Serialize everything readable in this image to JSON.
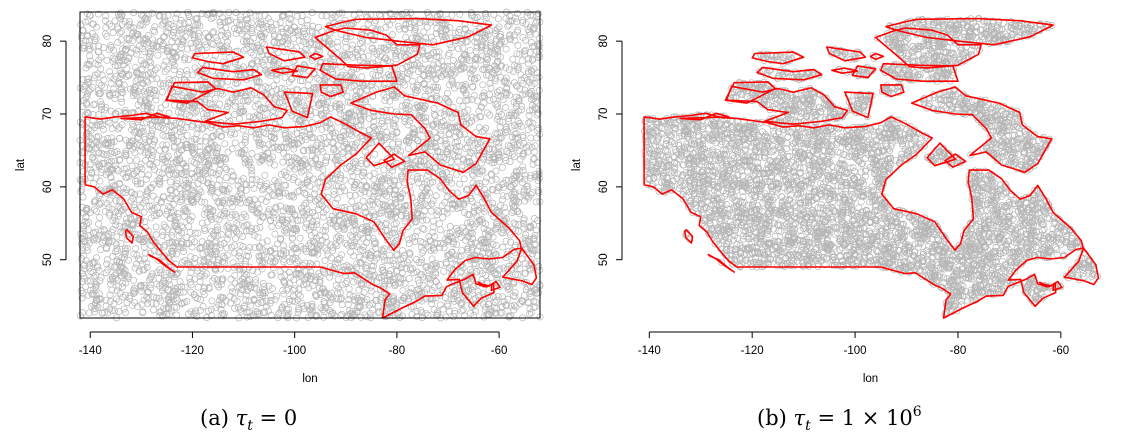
{
  "chart_data": [
    {
      "type": "scatter",
      "title": "",
      "xlabel": "lon",
      "ylabel": "lat",
      "xlim": [
        -142,
        -52
      ],
      "ylim": [
        42,
        84
      ],
      "xticks": [
        -140,
        -120,
        -100,
        -80,
        -60
      ],
      "yticks": [
        50,
        60,
        70,
        80
      ],
      "points": "approx. 6000 random points spread uniformly over the lon/lat rectangle",
      "point_color": "#b5b5b5",
      "outline_color": "#ff0000",
      "caption": {
        "label": "(a)",
        "symbol": "τ",
        "subscript": "t",
        "value": "= 0"
      }
    },
    {
      "type": "scatter",
      "title": "",
      "xlabel": "lon",
      "ylabel": "lat",
      "xlim": [
        -142,
        -52
      ],
      "ylim": [
        42,
        84
      ],
      "xticks": [
        -140,
        -120,
        -100,
        -80,
        -60
      ],
      "yticks": [
        50,
        60,
        70,
        80
      ],
      "points": "approx. 6000 points located only inside the Canada outline",
      "point_color": "#b5b5b5",
      "outline_color": "#ff0000",
      "caption": {
        "label": "(b)",
        "symbol": "τ",
        "subscript": "t",
        "value": "= 1 × 10",
        "exponent": "6"
      }
    }
  ],
  "outline": {
    "mainland": [
      [
        -141,
        69.6
      ],
      [
        -138,
        69.3
      ],
      [
        -135,
        69.6
      ],
      [
        -132,
        69.8
      ],
      [
        -129,
        70.1
      ],
      [
        -126,
        69.5
      ],
      [
        -123,
        69.4
      ],
      [
        -120,
        69.1
      ],
      [
        -117,
        68.8
      ],
      [
        -114,
        68.2
      ],
      [
        -111,
        68.4
      ],
      [
        -108,
        68.1
      ],
      [
        -105,
        68.5
      ],
      [
        -102,
        68.1
      ],
      [
        -98,
        68.3
      ],
      [
        -95,
        68.8
      ],
      [
        -93,
        69.6
      ],
      [
        -90,
        68.6
      ],
      [
        -87,
        67.4
      ],
      [
        -85,
        66.7
      ],
      [
        -88,
        64.5
      ],
      [
        -91,
        63.0
      ],
      [
        -94,
        61.0
      ],
      [
        -94.8,
        59.0
      ],
      [
        -92.5,
        57.0
      ],
      [
        -88,
        56.3
      ],
      [
        -84.5,
        55.2
      ],
      [
        -82.3,
        52.9
      ],
      [
        -80.6,
        51.3
      ],
      [
        -79.5,
        52.2
      ],
      [
        -78.8,
        54.0
      ],
      [
        -77,
        55.6
      ],
      [
        -77.3,
        58.5
      ],
      [
        -78,
        60.7
      ],
      [
        -77.8,
        62.3
      ],
      [
        -74,
        62.3
      ],
      [
        -71.5,
        61.1
      ],
      [
        -69.8,
        59.5
      ],
      [
        -67.9,
        58.3
      ],
      [
        -66,
        58.8
      ],
      [
        -64.5,
        60.2
      ],
      [
        -63,
        58.5
      ],
      [
        -61.5,
        56.5
      ],
      [
        -59.6,
        55.3
      ],
      [
        -58,
        54.3
      ],
      [
        -56,
        52.6
      ],
      [
        -55.7,
        51.6
      ],
      [
        -57.1,
        51.4
      ],
      [
        -59.3,
        50.3
      ],
      [
        -62,
        50.1
      ],
      [
        -64.6,
        50.3
      ],
      [
        -66.6,
        49.9
      ],
      [
        -68.7,
        48.6
      ],
      [
        -70.2,
        47.2
      ],
      [
        -67.8,
        47.3
      ],
      [
        -67.2,
        45.5
      ],
      [
        -65,
        43.6
      ],
      [
        -63.5,
        44.7
      ],
      [
        -61,
        45.5
      ],
      [
        -61.1,
        46.7
      ],
      [
        -62.5,
        46.3
      ],
      [
        -64.5,
        46.7
      ],
      [
        -65.1,
        48.0
      ],
      [
        -66.8,
        47.3
      ],
      [
        -69,
        46.7
      ],
      [
        -70.3,
        46.3
      ],
      [
        -71.2,
        45.1
      ],
      [
        -74.5,
        45.0
      ],
      [
        -76.5,
        44.2
      ],
      [
        -79.2,
        43.3
      ],
      [
        -82.8,
        42.0
      ],
      [
        -82.3,
        44.5
      ],
      [
        -81.4,
        45.3
      ],
      [
        -83.4,
        46.2
      ],
      [
        -84.5,
        46.5
      ],
      [
        -88.3,
        48.2
      ],
      [
        -90.3,
        48.1
      ],
      [
        -95,
        49.0
      ],
      [
        -100,
        49.0
      ],
      [
        -105,
        49.0
      ],
      [
        -110,
        49.0
      ],
      [
        -115,
        49.0
      ],
      [
        -120,
        49.0
      ],
      [
        -123,
        49.0
      ],
      [
        -124.5,
        49.8
      ],
      [
        -126,
        51.0
      ],
      [
        -127.7,
        52.5
      ],
      [
        -128.8,
        53.8
      ],
      [
        -130.3,
        54.7
      ],
      [
        -130,
        55.9
      ],
      [
        -131.9,
        56.5
      ],
      [
        -133.5,
        58.4
      ],
      [
        -135.7,
        59.6
      ],
      [
        -137.5,
        59.0
      ],
      [
        -139.2,
        60.0
      ],
      [
        -141,
        60.3
      ]
    ],
    "islands": [
      [
        [
          -128.5,
          50.7
        ],
        [
          -127,
          50.1
        ],
        [
          -125.6,
          49.3
        ],
        [
          -123.5,
          48.3
        ],
        [
          -124.7,
          48.9
        ],
        [
          -126.5,
          50.0
        ],
        [
          -128.2,
          50.5
        ]
      ],
      [
        [
          -132.8,
          54.1
        ],
        [
          -131.6,
          53.2
        ],
        [
          -131.8,
          52.3
        ],
        [
          -132.9,
          53.0
        ],
        [
          -133.1,
          53.9
        ]
      ],
      [
        [
          -59.3,
          47.6
        ],
        [
          -56.5,
          49.8
        ],
        [
          -55.6,
          51.6
        ],
        [
          -53.2,
          49.3
        ],
        [
          -52.7,
          47.5
        ],
        [
          -53.6,
          46.6
        ],
        [
          -55.5,
          47.1
        ],
        [
          -58.5,
          47.5
        ]
      ],
      [
        [
          -64.1,
          46.9
        ],
        [
          -63,
          46.3
        ],
        [
          -61.9,
          46.4
        ],
        [
          -63.2,
          46.6
        ]
      ],
      [
        [
          -61.5,
          45.8
        ],
        [
          -59.8,
          46.2
        ],
        [
          -60.6,
          47.0
        ],
        [
          -61.4,
          46.7
        ]
      ],
      [
        [
          -83.5,
          66.0
        ],
        [
          -80.5,
          63.8
        ],
        [
          -84.5,
          62.9
        ],
        [
          -86,
          64.0
        ]
      ],
      [
        [
          -78.5,
          72.5
        ],
        [
          -72,
          71.5
        ],
        [
          -68,
          70.2
        ],
        [
          -67.5,
          68.5
        ],
        [
          -64.5,
          66.9
        ],
        [
          -61.8,
          66.6
        ],
        [
          -64.5,
          63.2
        ],
        [
          -67,
          62.0
        ],
        [
          -71.5,
          63.0
        ],
        [
          -74.5,
          64.8
        ],
        [
          -77.7,
          64.3
        ],
        [
          -73.5,
          66.7
        ],
        [
          -74.5,
          68.0
        ],
        [
          -77.2,
          69.9
        ],
        [
          -80.5,
          70.0
        ],
        [
          -85,
          70.5
        ],
        [
          -89,
          71.5
        ],
        [
          -84,
          73.0
        ],
        [
          -80.5,
          73.7
        ]
      ],
      [
        [
          -125,
          71.9
        ],
        [
          -119,
          71.7
        ],
        [
          -117,
          70.6
        ],
        [
          -113,
          70.2
        ],
        [
          -117.5,
          69.0
        ],
        [
          -112,
          68.6
        ],
        [
          -106.5,
          69.0
        ],
        [
          -102.5,
          69.5
        ],
        [
          -101.5,
          70.5
        ],
        [
          -104,
          71.0
        ],
        [
          -106,
          72.6
        ],
        [
          -108.5,
          73.6
        ],
        [
          -112,
          73.0
        ],
        [
          -115,
          73.5
        ],
        [
          -118,
          73.0
        ],
        [
          -124,
          73.8
        ]
      ],
      [
        [
          -123.5,
          74.3
        ],
        [
          -117,
          74.4
        ],
        [
          -115.5,
          73.5
        ],
        [
          -121,
          71.5
        ],
        [
          -125.2,
          71.9
        ]
      ],
      [
        [
          -102,
          73.0
        ],
        [
          -96.5,
          72.8
        ],
        [
          -97.5,
          69.5
        ],
        [
          -100.5,
          70.4
        ],
        [
          -101.5,
          72.2
        ]
      ],
      [
        [
          -95,
          74.0
        ],
        [
          -91,
          74.0
        ],
        [
          -90.5,
          73.0
        ],
        [
          -93,
          72.4
        ],
        [
          -94.8,
          73.0
        ]
      ],
      [
        [
          -99.5,
          76.6
        ],
        [
          -96,
          76.2
        ],
        [
          -97.5,
          75.0
        ],
        [
          -100.5,
          75.3
        ]
      ],
      [
        [
          -118,
          76.4
        ],
        [
          -112,
          75.8
        ],
        [
          -108,
          76.1
        ],
        [
          -106.5,
          75.4
        ],
        [
          -110,
          74.7
        ],
        [
          -116,
          74.9
        ],
        [
          -119,
          75.7
        ]
      ],
      [
        [
          -94.5,
          76.9
        ],
        [
          -88,
          76.7
        ],
        [
          -81,
          76.6
        ],
        [
          -80,
          74.5
        ],
        [
          -87,
          74.5
        ],
        [
          -92,
          74.8
        ],
        [
          -95,
          76.0
        ]
      ],
      [
        [
          -90.2,
          81.8
        ],
        [
          -85,
          81.5
        ],
        [
          -82,
          80.8
        ],
        [
          -80,
          79.5
        ],
        [
          -75.5,
          79.5
        ],
        [
          -76,
          78.2
        ],
        [
          -80,
          76.7
        ],
        [
          -86,
          76.3
        ],
        [
          -89.5,
          76.5
        ],
        [
          -91,
          77.5
        ],
        [
          -96,
          80.5
        ],
        [
          -92.5,
          81.4
        ]
      ],
      [
        [
          -88,
          83.0
        ],
        [
          -76,
          83.1
        ],
        [
          -68,
          82.8
        ],
        [
          -61.5,
          82.2
        ],
        [
          -66,
          80.6
        ],
        [
          -73,
          79.5
        ],
        [
          -80,
          80.0
        ],
        [
          -86,
          80.5
        ],
        [
          -91.5,
          81.4
        ],
        [
          -94,
          82.0
        ],
        [
          -90,
          82.7
        ]
      ],
      [
        [
          -119.5,
          78.3
        ],
        [
          -112,
          78.5
        ],
        [
          -110,
          77.8
        ],
        [
          -114,
          76.9
        ],
        [
          -117,
          77.2
        ],
        [
          -120,
          77.7
        ]
      ],
      [
        [
          -105.5,
          79.2
        ],
        [
          -99,
          78.5
        ],
        [
          -98,
          77.8
        ],
        [
          -102,
          77.3
        ],
        [
          -105,
          78.3
        ]
      ],
      [
        [
          -96,
          78.3
        ],
        [
          -94.5,
          77.9
        ],
        [
          -96,
          77.5
        ],
        [
          -97,
          77.9
        ]
      ],
      [
        [
          -102,
          76.3
        ],
        [
          -99.5,
          75.9
        ],
        [
          -102.5,
          75.6
        ],
        [
          -104.5,
          76.0
        ]
      ],
      [
        [
          -80.5,
          64.5
        ],
        [
          -78.5,
          63.5
        ],
        [
          -81,
          62.7
        ],
        [
          -82.5,
          63.6
        ]
      ],
      [
        [
          -134,
          69.4
        ],
        [
          -130,
          69.2
        ],
        [
          -127,
          70.1
        ],
        [
          -124.5,
          69.6
        ]
      ]
    ]
  }
}
